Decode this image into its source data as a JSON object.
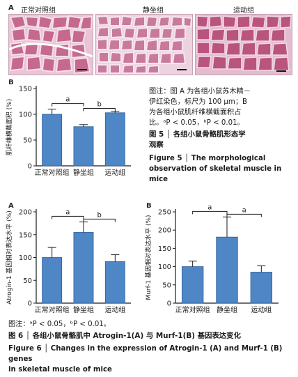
{
  "figure5": {
    "panel_a": {
      "letter": "A",
      "groups": [
        "正常对照组",
        "静坐组",
        "运动组"
      ]
    },
    "panel_b_letter": "B",
    "caption_lines": [
      "图注：图 A 为各组小鼠苏木精－",
      "伊红染色，标尺为 100 μm；B",
      "为各组小鼠肌纤维横截面积占",
      "比。ᵃP < 0.05，ᵇP < 0.01。"
    ],
    "title_cn": [
      "图 5 │ 各组小鼠骨骼肌形态学",
      "观察"
    ],
    "title_en": [
      "Figure 5  │  The morphological",
      "observation of skeletal muscle in",
      "mice"
    ]
  },
  "figure6": {
    "panel_a_letter": "A",
    "panel_b_letter": "B",
    "note": "图注：ᵃP < 0.05，ᵇP < 0.01。",
    "title_cn": "图 6 │ 各组小鼠骨骼肌中 Atrogin-1(A) 与 Murf-1(B) 基因表达变化",
    "title_en": [
      "Figure 6  │  Changes in the expression of Atrogin-1 (A) and Murf-1 (B) genes",
      "in skeletal muscle of mice"
    ]
  },
  "colors": {
    "bar": "#4f86c6",
    "bar_edge": "#2f5f9a",
    "axis": "#1a1a1a"
  },
  "chart_data": [
    {
      "id": "fig5b",
      "type": "bar",
      "categories": [
        "正常对照组",
        "静坐组",
        "运动组"
      ],
      "values": [
        100,
        76,
        103
      ],
      "errors": [
        10,
        4,
        3
      ],
      "ylabel": "肌纤维横截面积 (%)",
      "ylim": [
        0,
        150
      ],
      "yticks": [
        0,
        50,
        100,
        150
      ],
      "significance": [
        {
          "from": 0,
          "to": 1,
          "label": "a"
        },
        {
          "from": 1,
          "to": 2,
          "label": "b"
        }
      ]
    },
    {
      "id": "fig6a",
      "type": "bar",
      "categories": [
        "正常对照组",
        "静坐组",
        "运动组"
      ],
      "values": [
        100,
        155,
        91
      ],
      "errors": [
        22,
        23,
        15
      ],
      "ylabel": "Atrogin-1 基因相对表达水平 (%)",
      "ylim": [
        0,
        200
      ],
      "yticks": [
        0,
        50,
        100,
        150,
        200
      ],
      "significance": [
        {
          "from": 0,
          "to": 1,
          "label": "a"
        },
        {
          "from": 1,
          "to": 2,
          "label": "b"
        }
      ]
    },
    {
      "id": "fig6b",
      "type": "bar",
      "categories": [
        "正常对照组",
        "静坐组",
        "运动组"
      ],
      "values": [
        100,
        181,
        85
      ],
      "errors": [
        15,
        55,
        17
      ],
      "ylabel": "Murf-1 基因相对表达水平 (%)",
      "ylim": [
        0,
        250
      ],
      "yticks": [
        0,
        50,
        100,
        150,
        200,
        250
      ],
      "significance": [
        {
          "from": 0,
          "to": 1,
          "label": "a"
        },
        {
          "from": 1,
          "to": 2,
          "label": "a"
        }
      ]
    }
  ]
}
